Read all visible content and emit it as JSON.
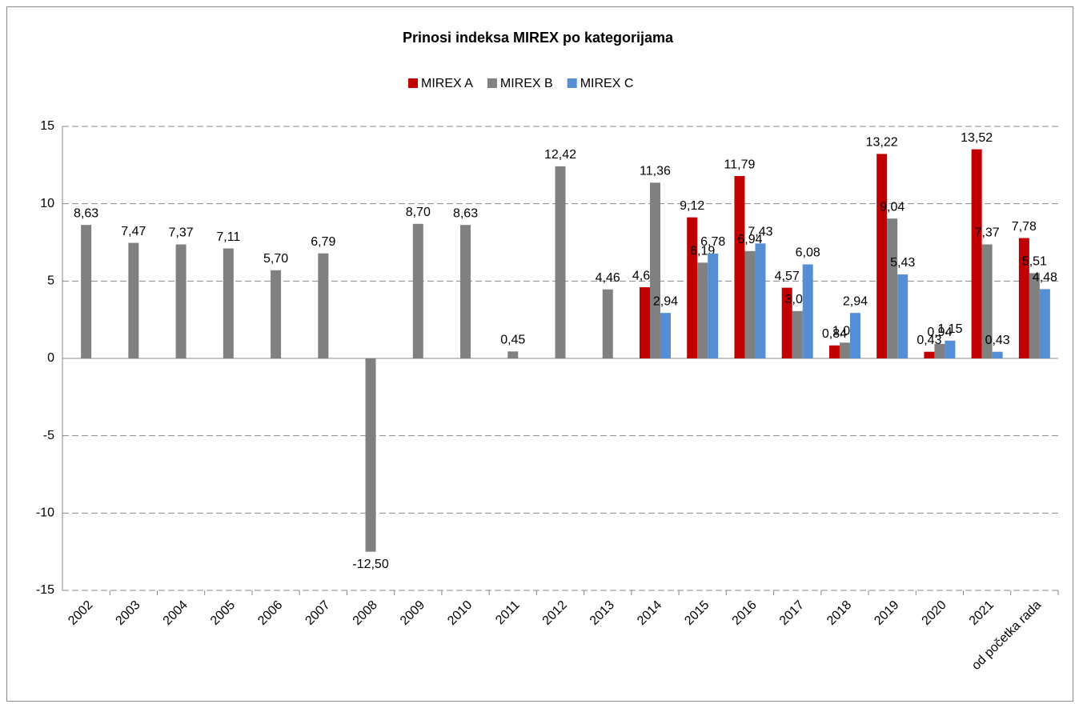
{
  "chart_data": {
    "type": "bar",
    "title": "Prinosi indeksa MIREX po kategorijama",
    "categories": [
      "2002",
      "2003",
      "2004",
      "2005",
      "2006",
      "2007",
      "2008",
      "2009",
      "2010",
      "2011",
      "2012",
      "2013",
      "2014",
      "2015",
      "2016",
      "2017",
      "2018",
      "2019",
      "2020",
      "2021",
      "od početka rada"
    ],
    "series": [
      {
        "name": "MIREX A",
        "color": "#c00000",
        "values": [
          null,
          null,
          null,
          null,
          null,
          null,
          null,
          null,
          null,
          null,
          null,
          null,
          4.6,
          9.12,
          11.79,
          4.57,
          0.84,
          13.22,
          0.43,
          13.52,
          7.78
        ],
        "value_labels": [
          null,
          null,
          null,
          null,
          null,
          null,
          null,
          null,
          null,
          null,
          null,
          null,
          "4,60",
          "9,12",
          "11,79",
          "4,57",
          "0,84",
          "13,22",
          "0,43",
          "13,52",
          "7,78"
        ]
      },
      {
        "name": "MIREX B",
        "color": "#808080",
        "values": [
          8.63,
          7.47,
          7.37,
          7.11,
          5.7,
          6.79,
          -12.5,
          8.7,
          8.63,
          0.45,
          12.42,
          4.46,
          11.36,
          6.19,
          6.94,
          3.06,
          1.02,
          9.04,
          0.94,
          7.37,
          5.51
        ],
        "value_labels": [
          "8,63",
          "7,47",
          "7,37",
          "7,11",
          "5,70",
          "6,79",
          "-12,50",
          "8,70",
          "8,63",
          "0,45",
          "12,42",
          "4,46",
          "11,36",
          "6,19",
          "6,94",
          "3,06",
          "1,02",
          "9,04",
          "0,94",
          "7,37",
          "5,51"
        ]
      },
      {
        "name": "MIREX C",
        "color": "#558ed5",
        "values": [
          null,
          null,
          null,
          null,
          null,
          null,
          null,
          null,
          null,
          null,
          null,
          null,
          2.94,
          6.78,
          7.43,
          6.08,
          2.94,
          5.43,
          1.15,
          0.43,
          4.48
        ],
        "value_labels": [
          null,
          null,
          null,
          null,
          null,
          null,
          null,
          null,
          null,
          null,
          null,
          null,
          "2,94",
          "6,78",
          "7,43",
          "6,08",
          "2,94",
          "5,43",
          "1,15",
          "0,43",
          "4,48"
        ]
      }
    ],
    "ylim": [
      -15,
      15
    ],
    "yticks": [
      -15,
      -10,
      -5,
      0,
      5,
      10,
      15
    ],
    "grid": true,
    "legend": "top"
  }
}
